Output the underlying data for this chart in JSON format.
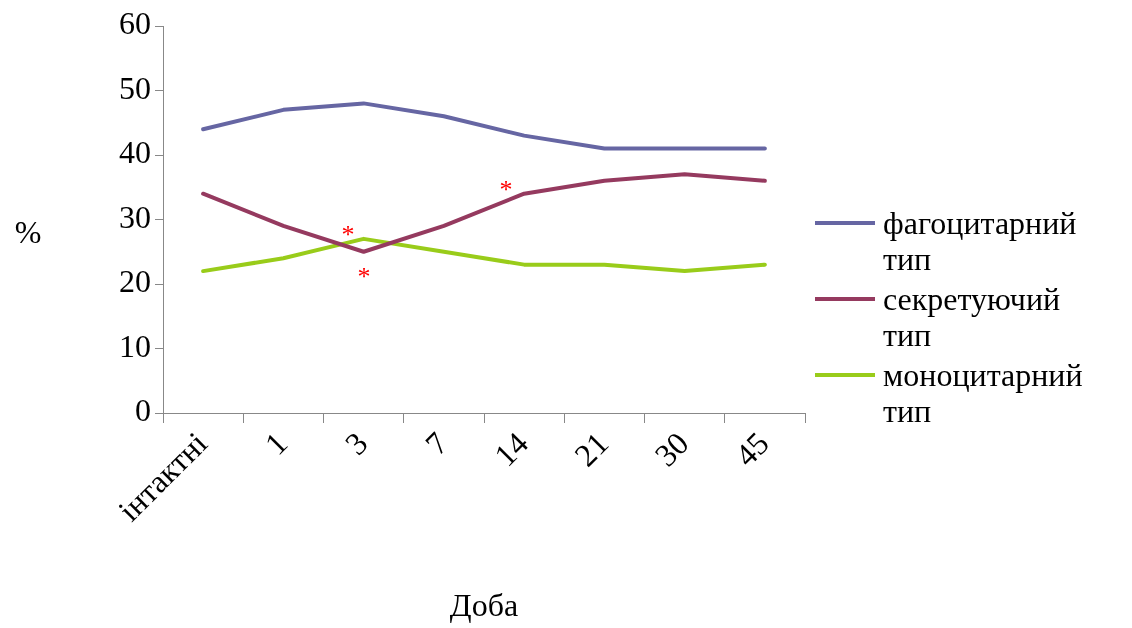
{
  "chart_data": {
    "type": "line",
    "xlabel": "Доба",
    "ylabel": "%",
    "categories": [
      "інтактні",
      "1",
      "3",
      "7",
      "14",
      "21",
      "30",
      "45"
    ],
    "series": [
      {
        "name": "фагоцитарний тип",
        "color": "#6666a3",
        "values": [
          44,
          47,
          48,
          46,
          43,
          41,
          41,
          41
        ]
      },
      {
        "name": "секретуючий тип",
        "color": "#953a5f",
        "values": [
          34,
          29,
          25,
          29,
          34,
          36,
          37,
          36
        ]
      },
      {
        "name": "моноцитарний тип",
        "color": "#99cc1a",
        "values": [
          22,
          24,
          27,
          25,
          23,
          23,
          22,
          23
        ]
      }
    ],
    "ylim": [
      0,
      60
    ],
    "yticks": [
      0,
      10,
      20,
      30,
      40,
      50,
      60
    ],
    "grid": false,
    "legend": "right",
    "marker": "none",
    "line_style": "solid",
    "annotations": [
      "*",
      "*",
      "*"
    ]
  }
}
